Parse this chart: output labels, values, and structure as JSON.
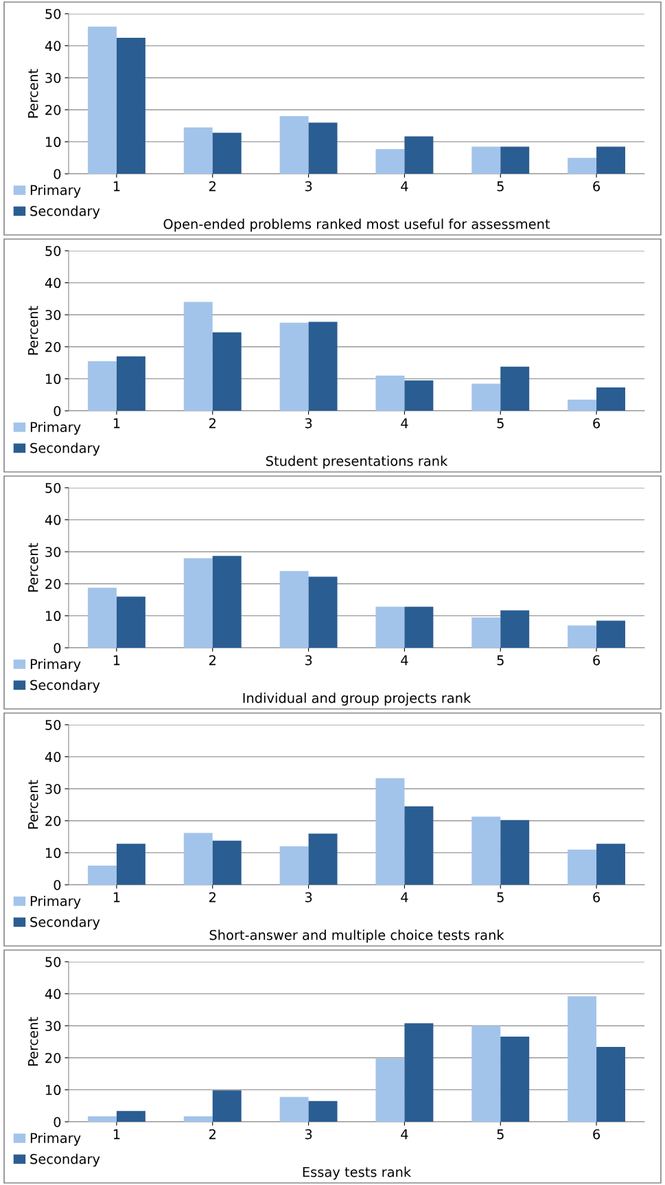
{
  "chart_data": [
    {
      "type": "bar",
      "xlabel": "Open-ended problems ranked most useful for assessment",
      "ylabel": "Percent",
      "categories": [
        "1",
        "2",
        "3",
        "4",
        "5",
        "6"
      ],
      "ylim": [
        0,
        50
      ],
      "yticks": [
        0,
        10,
        20,
        30,
        40,
        50
      ],
      "grid": "y",
      "legend": "bottom left",
      "series": [
        {
          "name": "Primary",
          "color": "#a3c4ea",
          "values": [
            46,
            14.5,
            18,
            7.7,
            8.5,
            5
          ]
        },
        {
          "name": "Secondary",
          "color": "#2a5d92",
          "values": [
            42.5,
            12.8,
            16,
            11.7,
            8.5,
            8.5
          ]
        }
      ]
    },
    {
      "type": "bar",
      "xlabel": "Student presentations rank",
      "ylabel": "Percent",
      "categories": [
        "1",
        "2",
        "3",
        "4",
        "5",
        "6"
      ],
      "ylim": [
        0,
        50
      ],
      "yticks": [
        0,
        10,
        20,
        30,
        40,
        50
      ],
      "grid": "y",
      "legend": "bottom left",
      "series": [
        {
          "name": "Primary",
          "color": "#a3c4ea",
          "values": [
            15.5,
            34,
            27.5,
            11,
            8.5,
            3.5
          ]
        },
        {
          "name": "Secondary",
          "color": "#2a5d92",
          "values": [
            17,
            24.5,
            27.8,
            9.5,
            13.8,
            7.3
          ]
        }
      ]
    },
    {
      "type": "bar",
      "xlabel": "Individual and group projects rank",
      "ylabel": "Percent",
      "categories": [
        "1",
        "2",
        "3",
        "4",
        "5",
        "6"
      ],
      "ylim": [
        0,
        50
      ],
      "yticks": [
        0,
        10,
        20,
        30,
        40,
        50
      ],
      "grid": "y",
      "legend": "bottom left",
      "series": [
        {
          "name": "Primary",
          "color": "#a3c4ea",
          "values": [
            18.8,
            28,
            24,
            12.8,
            9.5,
            7
          ]
        },
        {
          "name": "Secondary",
          "color": "#2a5d92",
          "values": [
            16,
            28.7,
            22.2,
            12.8,
            11.7,
            8.5
          ]
        }
      ]
    },
    {
      "type": "bar",
      "xlabel": "Short-answer and multiple choice tests rank",
      "ylabel": "Percent",
      "categories": [
        "1",
        "2",
        "3",
        "4",
        "5",
        "6"
      ],
      "ylim": [
        0,
        50
      ],
      "yticks": [
        0,
        10,
        20,
        30,
        40,
        50
      ],
      "grid": "y",
      "legend": "bottom left",
      "series": [
        {
          "name": "Primary",
          "color": "#a3c4ea",
          "values": [
            6,
            16.2,
            12,
            33.3,
            21.3,
            11
          ]
        },
        {
          "name": "Secondary",
          "color": "#2a5d92",
          "values": [
            12.8,
            13.8,
            16,
            24.5,
            20.2,
            12.8
          ]
        }
      ]
    },
    {
      "type": "bar",
      "xlabel": "Essay tests rank",
      "ylabel": "Percent",
      "categories": [
        "1",
        "2",
        "3",
        "4",
        "5",
        "6"
      ],
      "ylim": [
        0,
        50
      ],
      "yticks": [
        0,
        10,
        20,
        30,
        40,
        50
      ],
      "grid": "y",
      "legend": "bottom left",
      "series": [
        {
          "name": "Primary",
          "color": "#a3c4ea",
          "values": [
            1.7,
            1.7,
            7.8,
            19.8,
            30,
            39.2
          ]
        },
        {
          "name": "Secondary",
          "color": "#2a5d92",
          "values": [
            3.4,
            9.8,
            6.5,
            30.8,
            26.6,
            23.4
          ]
        }
      ]
    }
  ]
}
